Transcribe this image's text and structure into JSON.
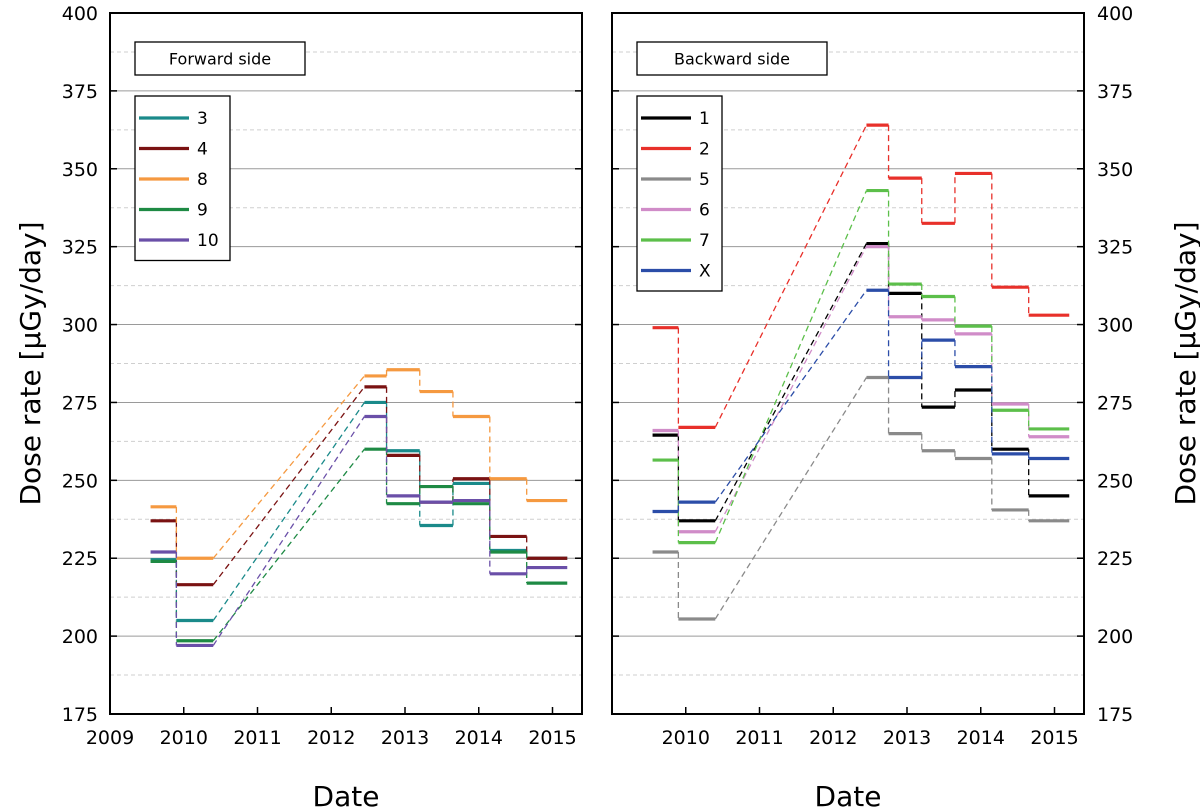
{
  "chart_data": [
    {
      "type": "line",
      "style": "step",
      "title": "Forward side",
      "xlabel": "Date",
      "ylabel": "Dose rate [μGy/day]",
      "xlim": [
        2009,
        2015.4
      ],
      "ylim": [
        175,
        400
      ],
      "xticks": [
        2009,
        2010,
        2011,
        2012,
        2013,
        2014,
        2015
      ],
      "yticks": [
        175,
        200,
        225,
        250,
        275,
        300,
        325,
        350,
        375,
        400
      ],
      "series": [
        {
          "name": "3",
          "color": "#1a8a8a",
          "segments": [
            [
              2009.55,
              2009.9,
              224.5
            ],
            [
              2009.9,
              2010.4,
              205
            ],
            [
              2012.45,
              2012.75,
              275
            ],
            [
              2012.75,
              2013.2,
              259.5
            ],
            [
              2013.2,
              2013.65,
              235.5
            ],
            [
              2013.65,
              2014.15,
              249
            ],
            [
              2014.15,
              2014.65,
              227.5
            ],
            [
              2014.65,
              2015.2,
              225
            ]
          ]
        },
        {
          "name": "4",
          "color": "#7a1212",
          "segments": [
            [
              2009.55,
              2009.9,
              237
            ],
            [
              2009.9,
              2010.4,
              216.5
            ],
            [
              2012.45,
              2012.75,
              280
            ],
            [
              2012.75,
              2013.2,
              258
            ],
            [
              2013.2,
              2013.65,
              243
            ],
            [
              2013.65,
              2014.15,
              250.5
            ],
            [
              2014.15,
              2014.65,
              232
            ],
            [
              2014.65,
              2015.2,
              225
            ]
          ]
        },
        {
          "name": "8",
          "color": "#f59940",
          "segments": [
            [
              2009.55,
              2009.9,
              241.5
            ],
            [
              2009.9,
              2010.4,
              225
            ],
            [
              2012.45,
              2012.75,
              283.5
            ],
            [
              2012.75,
              2013.2,
              285.5
            ],
            [
              2013.2,
              2013.65,
              278.5
            ],
            [
              2013.65,
              2014.15,
              270.5
            ],
            [
              2014.15,
              2014.65,
              250.5
            ],
            [
              2014.65,
              2015.2,
              243.5
            ]
          ]
        },
        {
          "name": "9",
          "color": "#1e8a44",
          "segments": [
            [
              2009.55,
              2009.9,
              224
            ],
            [
              2009.9,
              2010.4,
              198.5
            ],
            [
              2012.45,
              2012.75,
              260
            ],
            [
              2012.75,
              2013.2,
              242.5
            ],
            [
              2013.2,
              2013.65,
              248
            ],
            [
              2013.65,
              2014.15,
              242.5
            ],
            [
              2014.15,
              2014.65,
              227
            ],
            [
              2014.65,
              2015.2,
              217
            ]
          ]
        },
        {
          "name": "10",
          "color": "#6a4fa8",
          "segments": [
            [
              2009.55,
              2009.9,
              227
            ],
            [
              2009.9,
              2010.4,
              197
            ],
            [
              2012.45,
              2012.75,
              270.5
            ],
            [
              2012.75,
              2013.2,
              245
            ],
            [
              2013.2,
              2013.65,
              243
            ],
            [
              2013.65,
              2014.15,
              243.5
            ],
            [
              2014.15,
              2014.65,
              220
            ],
            [
              2014.65,
              2015.2,
              222
            ]
          ]
        }
      ]
    },
    {
      "type": "line",
      "style": "step",
      "title": "Backward side",
      "xlabel": "Date",
      "ylabel": "Dose rate [μGy/day]",
      "xlim": [
        2009,
        2015.4
      ],
      "ylim": [
        175,
        400
      ],
      "xticks": [
        2010,
        2011,
        2012,
        2013,
        2014,
        2015
      ],
      "yticks": [
        175,
        200,
        225,
        250,
        275,
        300,
        325,
        350,
        375,
        400
      ],
      "series": [
        {
          "name": "1",
          "color": "#000000",
          "segments": [
            [
              2009.55,
              2009.9,
              264.5
            ],
            [
              2009.9,
              2010.4,
              237
            ],
            [
              2012.45,
              2012.75,
              326
            ],
            [
              2012.75,
              2013.2,
              310
            ],
            [
              2013.2,
              2013.65,
              273.5
            ],
            [
              2013.65,
              2014.15,
              279
            ],
            [
              2014.15,
              2014.65,
              260
            ],
            [
              2014.65,
              2015.2,
              245
            ]
          ]
        },
        {
          "name": "2",
          "color": "#e8302a",
          "segments": [
            [
              2009.55,
              2009.9,
              299
            ],
            [
              2009.9,
              2010.4,
              267
            ],
            [
              2012.45,
              2012.75,
              364
            ],
            [
              2012.75,
              2013.2,
              347
            ],
            [
              2013.2,
              2013.65,
              332.5
            ],
            [
              2013.65,
              2014.15,
              348.5
            ],
            [
              2014.15,
              2014.65,
              312
            ],
            [
              2014.65,
              2015.2,
              303
            ]
          ]
        },
        {
          "name": "5",
          "color": "#8a8a8a",
          "segments": [
            [
              2009.55,
              2009.9,
              227
            ],
            [
              2009.9,
              2010.4,
              205.5
            ],
            [
              2012.45,
              2012.75,
              283
            ],
            [
              2012.75,
              2013.2,
              265
            ],
            [
              2013.2,
              2013.65,
              259.5
            ],
            [
              2013.65,
              2014.15,
              257
            ],
            [
              2014.15,
              2014.65,
              240.5
            ],
            [
              2014.65,
              2015.2,
              237
            ]
          ]
        },
        {
          "name": "6",
          "color": "#d08cc8",
          "segments": [
            [
              2009.55,
              2009.9,
              266
            ],
            [
              2009.9,
              2010.4,
              233.5
            ],
            [
              2012.45,
              2012.75,
              325
            ],
            [
              2012.75,
              2013.2,
              302.5
            ],
            [
              2013.2,
              2013.65,
              301.5
            ],
            [
              2013.65,
              2014.15,
              297
            ],
            [
              2014.15,
              2014.65,
              274.5
            ],
            [
              2014.65,
              2015.2,
              264
            ]
          ]
        },
        {
          "name": "7",
          "color": "#5cbf4a",
          "segments": [
            [
              2009.55,
              2009.9,
              256.5
            ],
            [
              2009.9,
              2010.4,
              230
            ],
            [
              2012.45,
              2012.75,
              343
            ],
            [
              2012.75,
              2013.2,
              313
            ],
            [
              2013.2,
              2013.65,
              309
            ],
            [
              2013.65,
              2014.15,
              299.5
            ],
            [
              2014.15,
              2014.65,
              272.5
            ],
            [
              2014.65,
              2015.2,
              266.5
            ]
          ]
        },
        {
          "name": "X",
          "color": "#2b4da8",
          "segments": [
            [
              2009.55,
              2009.9,
              240
            ],
            [
              2009.9,
              2010.4,
              243
            ],
            [
              2012.45,
              2012.75,
              311
            ],
            [
              2012.75,
              2013.2,
              283
            ],
            [
              2013.2,
              2013.65,
              295
            ],
            [
              2013.65,
              2014.15,
              286.5
            ],
            [
              2014.15,
              2014.65,
              258.5
            ],
            [
              2014.65,
              2015.2,
              257
            ]
          ]
        }
      ]
    }
  ]
}
